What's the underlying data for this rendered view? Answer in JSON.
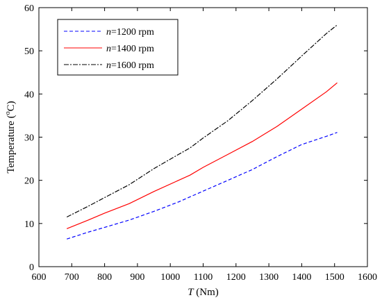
{
  "chart_data": {
    "type": "line",
    "xlabel_var": "T",
    "xlabel_unit": " (Nm)",
    "ylabel_main": "Temperature (",
    "ylabel_sup": "o",
    "ylabel_end": "C)",
    "xlim": [
      600,
      1600
    ],
    "ylim": [
      0,
      60
    ],
    "xticks": [
      600,
      700,
      800,
      900,
      1000,
      1100,
      1200,
      1300,
      1400,
      1500,
      1600
    ],
    "yticks": [
      0,
      10,
      20,
      30,
      40,
      50,
      60
    ],
    "grid": false,
    "legend_position": "top-left",
    "series": [
      {
        "var": "n",
        "label": "=1200 rpm",
        "color": "#0000ff",
        "dash": "dashed",
        "x": [
          685,
          750,
          800,
          875,
          950,
          1025,
          1100,
          1175,
          1250,
          1325,
          1400,
          1475,
          1508
        ],
        "y": [
          6.4,
          8.0,
          9.1,
          10.8,
          12.8,
          15.0,
          17.5,
          20.0,
          22.5,
          25.5,
          28.3,
          30.2,
          31.1
        ]
      },
      {
        "var": "n",
        "label": "=1400 rpm",
        "color": "#ff0000",
        "dash": "solid",
        "x": [
          685,
          750,
          800,
          875,
          950,
          1025,
          1060,
          1100,
          1175,
          1250,
          1325,
          1400,
          1475,
          1508
        ],
        "y": [
          8.8,
          10.8,
          12.4,
          14.6,
          17.4,
          20.0,
          21.2,
          23.0,
          26.0,
          29.0,
          32.5,
          36.5,
          40.5,
          42.6
        ]
      },
      {
        "var": "n",
        "label": "=1600 rpm",
        "color": "#000000",
        "dash": "dashdot",
        "x": [
          685,
          750,
          800,
          875,
          950,
          1025,
          1060,
          1100,
          1175,
          1250,
          1325,
          1400,
          1475,
          1508
        ],
        "y": [
          11.5,
          14.0,
          16.0,
          19.0,
          22.7,
          26.0,
          27.5,
          29.8,
          33.8,
          38.5,
          43.5,
          48.8,
          54.0,
          56.0
        ]
      }
    ]
  }
}
